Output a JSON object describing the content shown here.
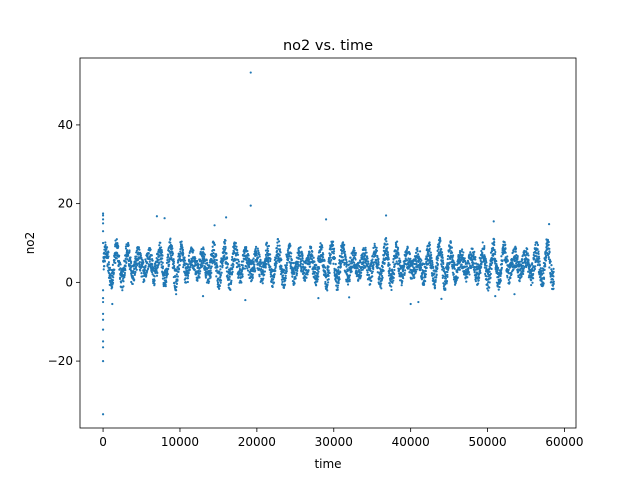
{
  "chart_data": {
    "type": "scatter",
    "title": "no2 vs. time",
    "xlabel": "time",
    "ylabel": "no2",
    "xlim": [
      -3000,
      61500
    ],
    "ylim": [
      -37,
      57
    ],
    "xticks": [
      0,
      10000,
      20000,
      30000,
      40000,
      50000,
      60000
    ],
    "xtick_labels": [
      "0",
      "10000",
      "20000",
      "30000",
      "40000",
      "50000",
      "60000"
    ],
    "yticks": [
      -20,
      0,
      20,
      40
    ],
    "ytick_labels": [
      "−20",
      "0",
      "20",
      "40"
    ],
    "grid": false,
    "color": "#1f77b4",
    "series": [
      {
        "x": [
          0,
          0,
          0,
          0,
          0,
          0,
          0,
          0,
          0,
          0,
          0,
          0,
          0,
          0,
          0,
          0,
          19200,
          19200,
          16000,
          14500,
          8000,
          7000,
          29000,
          36800,
          50800,
          58000,
          40000,
          41000,
          9500,
          13000,
          18500,
          1200,
          28000,
          32000,
          44000,
          51000,
          53500
        ],
        "y": [
          -33.5,
          -20,
          -16.5,
          -15,
          -12,
          -9.5,
          -8,
          -5,
          -4,
          -2,
          10,
          13,
          15,
          16,
          17,
          17.5,
          53.3,
          19.5,
          16.5,
          14.5,
          16.3,
          16.8,
          16,
          17,
          15.5,
          14.8,
          -5.5,
          -5,
          -3,
          -3.5,
          -4.5,
          -5.5,
          -4,
          -3.8,
          -4.2,
          -3.5,
          -3
        ]
      }
    ],
    "dense_band": {
      "x_range": [
        0,
        58600
      ],
      "center": 4.5,
      "low": -4,
      "high": 15,
      "oscillation_period": 1400
    }
  }
}
